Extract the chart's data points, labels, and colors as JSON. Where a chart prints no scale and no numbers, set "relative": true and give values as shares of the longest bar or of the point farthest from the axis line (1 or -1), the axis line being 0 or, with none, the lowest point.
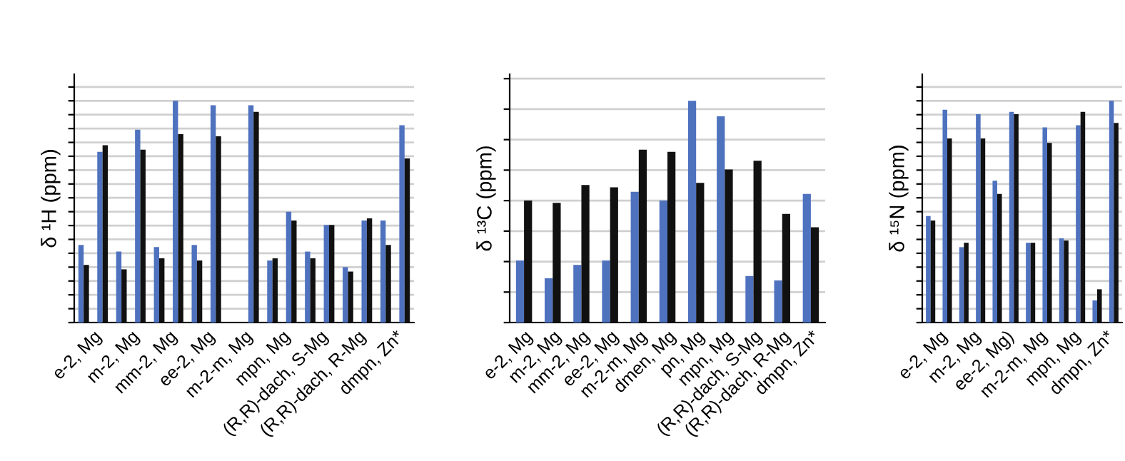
{
  "chart_data": [
    {
      "type": "bar",
      "ylabel": "δ ¹H (ppm)",
      "relative": true,
      "grid": "y",
      "tick_labels": "x",
      "categories": [
        "e-2, Mg",
        "m-2, Mg",
        "mm-2, Mg",
        "ee-2, Mg",
        "m-2-m, Mg",
        "mpn, Mg",
        "(R,R)-dach, S-Mg",
        "(R,R)-dach, R-Mg",
        "dmpn, Zn*"
      ],
      "series": [
        {
          "color": "#4f72bf",
          "values": [
            0.35,
            0.32,
            0.34,
            0.35,
            null,
            0.28,
            0.32,
            0.25,
            0.46
          ]
        },
        {
          "color": "#111111",
          "values": [
            0.26,
            0.24,
            0.29,
            0.28,
            null,
            0.29,
            0.29,
            0.23,
            0.35
          ]
        },
        {
          "color": "#4f72bf",
          "values": [
            0.77,
            0.87,
            1,
            0.98,
            0.98,
            0.5,
            0.44,
            0.46,
            0.89
          ]
        },
        {
          "color": "#111111",
          "values": [
            0.8,
            0.78,
            0.85,
            0.84,
            0.95,
            0.46,
            0.44,
            0.47,
            0.74
          ]
        }
      ]
    },
    {
      "type": "bar",
      "ylabel": "δ ¹³C (ppm)",
      "relative": true,
      "grid": "y",
      "tick_labels": "x",
      "categories": [
        "e-2, Mg",
        "m-2, Mg",
        "mm-2, Mg",
        "ee-2, Mg",
        "m-2-m, Mg",
        "dmen, Mg",
        "pn, Mg",
        "mpn, Mg",
        "(R,R)-dach, S-Mg",
        "(R,R)-dach, R-Mg",
        "dmpn, Zn*"
      ],
      "series": [
        {
          "color": "#4f72bf",
          "values": [
            0.28,
            0.2,
            0.26,
            0.28,
            0.59,
            0.55,
            1,
            0.93,
            0.21,
            0.19,
            0.58
          ]
        },
        {
          "color": "#111111",
          "values": [
            0.55,
            0.54,
            0.62,
            0.61,
            0.78,
            0.77,
            0.63,
            0.69,
            0.73,
            0.49,
            0.43
          ]
        }
      ]
    },
    {
      "type": "bar",
      "ylabel": "δ ¹⁵N (ppm)",
      "relative": true,
      "grid": "y",
      "tick_labels": "x",
      "categories": [
        "e-2, Mg",
        "m-2, Mg",
        "ee-2, Mg)",
        "m-2-m, Mg",
        "mpn, Mg",
        "dmpn, Zn*"
      ],
      "series": [
        {
          "color": "#4f72bf",
          "values": [
            0.48,
            0.34,
            0.64,
            0.36,
            0.38,
            0.1
          ]
        },
        {
          "color": "#111111",
          "values": [
            0.46,
            0.36,
            0.58,
            0.36,
            0.37,
            0.15
          ]
        },
        {
          "color": "#4f72bf",
          "values": [
            0.96,
            0.94,
            0.95,
            0.88,
            0.89,
            1
          ]
        },
        {
          "color": "#111111",
          "values": [
            0.83,
            0.83,
            0.94,
            0.81,
            0.95,
            0.9
          ]
        }
      ]
    }
  ]
}
